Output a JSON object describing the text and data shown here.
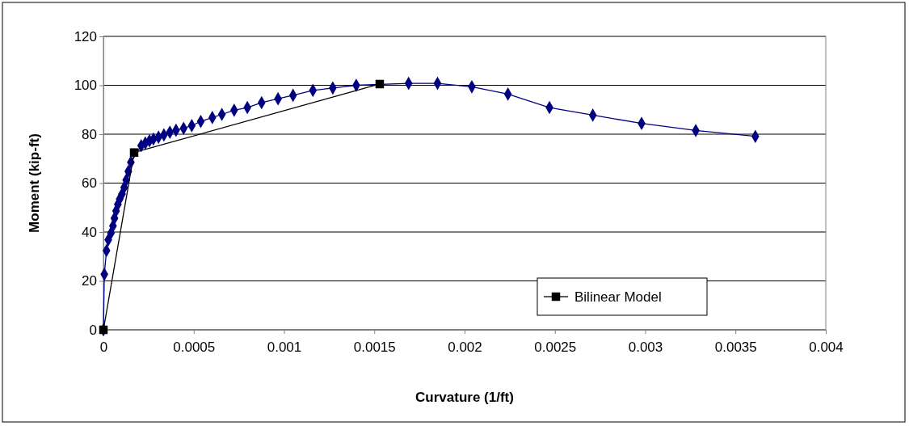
{
  "chart_data": {
    "type": "line",
    "xlabel": "Curvature (1/ft)",
    "ylabel": "Moment (kip-ft)",
    "xlim": [
      0,
      0.004
    ],
    "xticks": [
      0,
      0.0005,
      0.001,
      0.0015,
      0.002,
      0.0025,
      0.003,
      0.0035,
      0.004
    ],
    "ylim": [
      0,
      120
    ],
    "yticks": [
      0,
      20,
      40,
      60,
      80,
      100,
      120
    ],
    "grid": "y",
    "legend": "bottom right",
    "series": [
      {
        "color": "#000080",
        "marker": "diamond",
        "x": [
          0,
          5e-06,
          1.7e-05,
          2.7e-05,
          4.2e-05,
          5.3e-05,
          6.1e-05,
          7e-05,
          8e-05,
          9e-05,
          0.000103,
          0.000115,
          0.000126,
          0.000138,
          0.000152,
          0.000171,
          0.000186,
          0.000209,
          0.000232,
          0.000255,
          0.000277,
          0.000305,
          0.000335,
          0.000368,
          0.000402,
          0.000444,
          0.000489,
          0.000539,
          0.000603,
          0.000656,
          0.000724,
          0.000797,
          0.000876,
          0.000967,
          0.00105,
          0.00116,
          0.00127,
          0.0014,
          0.00153,
          0.00169,
          0.00185,
          0.00204,
          0.00224,
          0.00247,
          0.00271,
          0.00298,
          0.00328,
          0.00361
        ],
        "values": [
          0,
          22.7,
          32.4,
          36.8,
          39.6,
          42.5,
          45.6,
          48.6,
          51.3,
          53.5,
          55.5,
          58.2,
          61.2,
          64.8,
          68.5,
          null,
          null,
          75.3,
          76.4,
          77.3,
          78,
          78.8,
          79.7,
          80.8,
          81.6,
          82.4,
          83.5,
          85.2,
          86.8,
          88.1,
          89.8,
          90.9,
          92.9,
          94.5,
          95.9,
          97.9,
          98.9,
          100,
          null,
          100.8,
          100.8,
          99.4,
          96.4,
          90.9,
          87.8,
          84.4,
          81.5,
          79.1
        ]
      },
      {
        "name": "Bilinear Model",
        "color": "#000000",
        "marker": "square",
        "x": [
          0,
          0.00017,
          0.00153
        ],
        "values": [
          0,
          72.5,
          100.5
        ]
      }
    ]
  }
}
